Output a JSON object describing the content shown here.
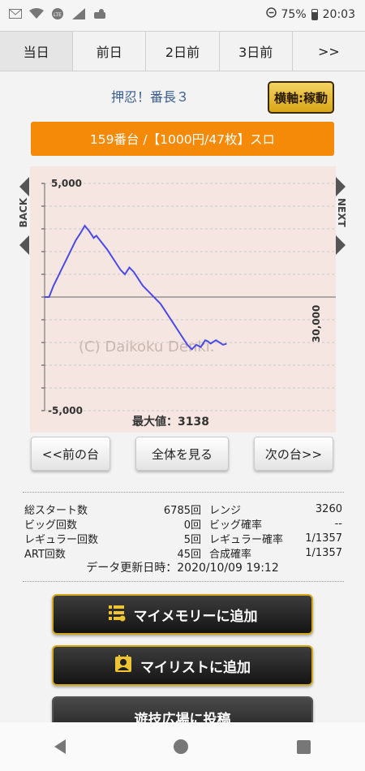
{
  "status_bar": {
    "battery": "75%",
    "time": "20:03"
  },
  "tabs": [
    {
      "label": "当日",
      "active": true
    },
    {
      "label": "前日",
      "active": false
    },
    {
      "label": "2日前",
      "active": false
    },
    {
      "label": "3日前",
      "active": false
    },
    {
      "label": ">>",
      "active": false
    }
  ],
  "machine": {
    "name": "押忍！番長３",
    "axis_button": "横軸:稼動",
    "unit_info": "159番台 /【1000円/47枚】スロ"
  },
  "chart_data": {
    "type": "line",
    "xlabel": "",
    "ylabel": "",
    "yticks": [
      "5,000",
      "-5,000"
    ],
    "xtick_right": "30,000",
    "ylim": [
      -5000,
      5000
    ],
    "xlim": [
      0,
      30000
    ],
    "watermark": "(C) Daikoku Denki.",
    "max_label": "最大値：3138",
    "back_label": "BACK",
    "next_label": "NEXT",
    "line_color": "#4a4ae8",
    "series": [
      {
        "x": [
          0,
          500,
          1000,
          1500,
          2000,
          2500,
          3000,
          3500,
          4000,
          4500,
          5000,
          5500,
          5800,
          6200,
          6600,
          7000,
          7500,
          8000,
          8500,
          9000,
          9500,
          10000,
          10500,
          11000,
          11500,
          12000,
          12500,
          13000,
          13500,
          14000,
          14500,
          15000,
          15500,
          16000,
          16500,
          17000,
          17500,
          18000,
          18300,
          18600,
          18800,
          19200,
          19600,
          20000,
          20400
        ],
        "y": [
          0,
          0,
          500,
          900,
          1300,
          1700,
          2100,
          2500,
          2800,
          3138,
          2900,
          2600,
          2700,
          2500,
          2300,
          2100,
          1800,
          1500,
          1200,
          1000,
          1300,
          1100,
          800,
          500,
          300,
          100,
          -100,
          -300,
          -600,
          -900,
          -1200,
          -1500,
          -1800,
          -2100,
          -2300,
          -2100,
          -2200,
          -1900,
          -1950,
          -2050,
          -2000,
          -1900,
          -2000,
          -2100,
          -2050
        ]
      }
    ]
  },
  "nav_buttons": {
    "prev": "<<前の台",
    "all": "全体を見る",
    "next": "次の台>>"
  },
  "stats": [
    {
      "label1": "総スタート数",
      "value1": "6785回",
      "label2": "レンジ",
      "value2": "3260"
    },
    {
      "label1": "ビッグ回数",
      "value1": "0回",
      "label2": "ビッグ確率",
      "value2": "--"
    },
    {
      "label1": "レギュラー回数",
      "value1": "5回",
      "label2": "レギュラー確率",
      "value2": "1/1357"
    },
    {
      "label1": "ART回数",
      "value1": "45回",
      "label2": "合成確率",
      "value2": "1/1357"
    }
  ],
  "updated": "データ更新日時：2020/10/09 19:12",
  "actions": {
    "memory": "マイメモリーに追加",
    "list": "マイリストに追加",
    "post": "遊技広場に投稿"
  }
}
